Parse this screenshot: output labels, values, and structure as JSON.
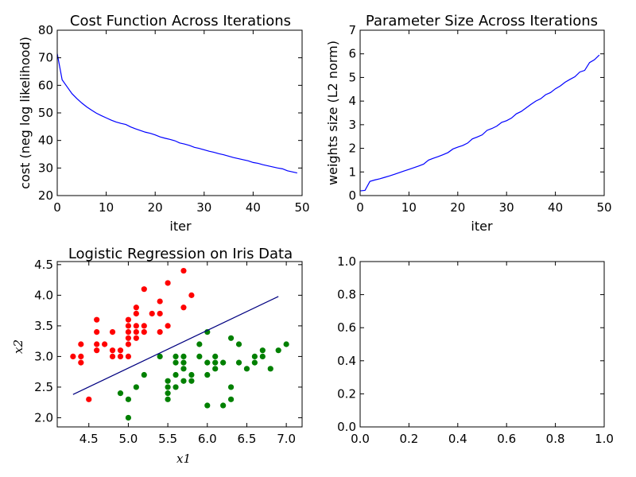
{
  "chart_data": [
    {
      "type": "line",
      "title": "Cost Function Across Iterations",
      "xlabel": "iter",
      "ylabel": "cost (neg log likelihood)",
      "xlim": [
        0,
        50
      ],
      "ylim": [
        20,
        80
      ],
      "xticks": [
        "0",
        "10",
        "20",
        "30",
        "40",
        "50"
      ],
      "yticks": [
        "20",
        "30",
        "40",
        "50",
        "60",
        "70",
        "80"
      ],
      "grid": false,
      "series": [
        {
          "color": "#0000ff",
          "x": [
            0,
            1,
            2,
            3,
            4,
            5,
            6,
            7,
            8,
            9,
            10,
            11,
            12,
            13,
            14,
            15,
            16,
            17,
            18,
            19,
            20,
            21,
            22,
            23,
            24,
            25,
            26,
            27,
            28,
            29,
            30,
            31,
            32,
            33,
            34,
            35,
            36,
            37,
            38,
            39,
            40,
            41,
            42,
            43,
            44,
            45,
            46,
            47,
            48,
            49
          ],
          "y": [
            71.5,
            62.0,
            59.5,
            57.0,
            55.2,
            53.6,
            52.2,
            51.0,
            49.9,
            49.0,
            48.2,
            47.4,
            46.7,
            46.2,
            45.8,
            44.9,
            44.2,
            43.6,
            43.0,
            42.6,
            42.0,
            41.3,
            40.8,
            40.4,
            39.9,
            39.1,
            38.7,
            38.2,
            37.5,
            37.1,
            36.6,
            36.1,
            35.7,
            35.2,
            34.8,
            34.3,
            33.8,
            33.4,
            33.0,
            32.6,
            32.0,
            31.7,
            31.2,
            30.8,
            30.4,
            30.0,
            29.7,
            29.0,
            28.6,
            28.2
          ]
        }
      ]
    },
    {
      "type": "line",
      "title": "Parameter Size Across Iterations",
      "xlabel": "iter",
      "ylabel": "weights size (L2 norm)",
      "xlim": [
        0,
        50
      ],
      "ylim": [
        0,
        7
      ],
      "xticks": [
        "0",
        "10",
        "20",
        "30",
        "40",
        "50"
      ],
      "yticks": [
        "0",
        "1",
        "2",
        "3",
        "4",
        "5",
        "6",
        "7"
      ],
      "grid": false,
      "series": [
        {
          "color": "#0000ff",
          "x": [
            0,
            1,
            2,
            3,
            4,
            5,
            6,
            7,
            8,
            9,
            10,
            11,
            12,
            13,
            14,
            15,
            16,
            17,
            18,
            19,
            20,
            21,
            22,
            23,
            24,
            25,
            26,
            27,
            28,
            29,
            30,
            31,
            32,
            33,
            34,
            35,
            36,
            37,
            38,
            39,
            40,
            41,
            42,
            43,
            44,
            45,
            46,
            47,
            48,
            49
          ],
          "y": [
            0.2,
            0.22,
            0.6,
            0.66,
            0.71,
            0.77,
            0.83,
            0.9,
            0.97,
            1.04,
            1.11,
            1.18,
            1.25,
            1.33,
            1.5,
            1.58,
            1.65,
            1.73,
            1.82,
            1.97,
            2.05,
            2.12,
            2.22,
            2.4,
            2.48,
            2.57,
            2.76,
            2.84,
            2.94,
            3.1,
            3.17,
            3.28,
            3.46,
            3.56,
            3.71,
            3.86,
            4.0,
            4.1,
            4.27,
            4.36,
            4.52,
            4.64,
            4.8,
            4.92,
            5.03,
            5.23,
            5.3,
            5.63,
            5.75,
            5.95
          ]
        }
      ]
    },
    {
      "type": "scatter",
      "title": "Logistic Regression on Iris Data",
      "xlabel": "x1",
      "ylabel": "x2",
      "xlim": [
        4.1,
        7.2
      ],
      "ylim": [
        1.85,
        4.55
      ],
      "xticks": [
        "4.5",
        "5.0",
        "5.5",
        "6.0",
        "6.5",
        "7.0"
      ],
      "yticks": [
        "2.0",
        "2.5",
        "3.0",
        "3.5",
        "4.0",
        "4.5"
      ],
      "grid": false,
      "series": [
        {
          "color": "#ff0000",
          "points": [
            [
              4.3,
              3.0
            ],
            [
              4.4,
              3.2
            ],
            [
              4.4,
              3.0
            ],
            [
              4.4,
              2.9
            ],
            [
              4.5,
              2.3
            ],
            [
              4.6,
              3.6
            ],
            [
              4.6,
              3.4
            ],
            [
              4.6,
              3.2
            ],
            [
              4.6,
              3.1
            ],
            [
              4.7,
              3.2
            ],
            [
              4.8,
              3.4
            ],
            [
              4.8,
              3.1
            ],
            [
              4.8,
              3.0
            ],
            [
              4.9,
              3.1
            ],
            [
              4.9,
              3.0
            ],
            [
              5.0,
              3.6
            ],
            [
              5.0,
              3.5
            ],
            [
              5.0,
              3.4
            ],
            [
              5.0,
              3.3
            ],
            [
              5.0,
              3.2
            ],
            [
              5.0,
              3.0
            ],
            [
              5.1,
              3.8
            ],
            [
              5.1,
              3.7
            ],
            [
              5.1,
              3.5
            ],
            [
              5.1,
              3.4
            ],
            [
              5.1,
              3.3
            ],
            [
              5.2,
              4.1
            ],
            [
              5.2,
              3.5
            ],
            [
              5.2,
              3.4
            ],
            [
              5.3,
              3.7
            ],
            [
              5.4,
              3.9
            ],
            [
              5.4,
              3.7
            ],
            [
              5.4,
              3.4
            ],
            [
              5.5,
              4.2
            ],
            [
              5.5,
              3.5
            ],
            [
              5.7,
              4.4
            ],
            [
              5.7,
              3.8
            ],
            [
              5.8,
              4.0
            ]
          ]
        },
        {
          "color": "#008000",
          "points": [
            [
              4.9,
              2.4
            ],
            [
              5.0,
              2.3
            ],
            [
              5.0,
              2.0
            ],
            [
              5.1,
              2.5
            ],
            [
              5.2,
              2.7
            ],
            [
              5.4,
              3.0
            ],
            [
              5.5,
              2.6
            ],
            [
              5.5,
              2.5
            ],
            [
              5.5,
              2.4
            ],
            [
              5.5,
              2.3
            ],
            [
              5.6,
              3.0
            ],
            [
              5.6,
              2.9
            ],
            [
              5.6,
              2.7
            ],
            [
              5.6,
              2.5
            ],
            [
              5.7,
              3.0
            ],
            [
              5.7,
              2.9
            ],
            [
              5.7,
              2.8
            ],
            [
              5.7,
              2.6
            ],
            [
              5.8,
              2.7
            ],
            [
              5.8,
              2.6
            ],
            [
              5.9,
              3.2
            ],
            [
              5.9,
              3.0
            ],
            [
              6.0,
              3.4
            ],
            [
              6.0,
              2.9
            ],
            [
              6.0,
              2.7
            ],
            [
              6.0,
              2.2
            ],
            [
              6.1,
              3.0
            ],
            [
              6.1,
              2.9
            ],
            [
              6.1,
              2.8
            ],
            [
              6.2,
              2.9
            ],
            [
              6.2,
              2.2
            ],
            [
              6.3,
              3.3
            ],
            [
              6.3,
              2.5
            ],
            [
              6.3,
              2.3
            ],
            [
              6.4,
              3.2
            ],
            [
              6.4,
              2.9
            ],
            [
              6.5,
              2.8
            ],
            [
              6.6,
              3.0
            ],
            [
              6.6,
              2.9
            ],
            [
              6.7,
              3.1
            ],
            [
              6.7,
              3.0
            ],
            [
              6.8,
              2.8
            ],
            [
              6.9,
              3.1
            ],
            [
              7.0,
              3.2
            ]
          ]
        },
        {
          "type": "line",
          "color": "#000080",
          "x": [
            4.3,
            6.9
          ],
          "y": [
            2.38,
            3.98
          ]
        }
      ]
    },
    {
      "type": "line",
      "title": "",
      "xlabel": "",
      "ylabel": "",
      "xlim": [
        0,
        1
      ],
      "ylim": [
        0,
        1
      ],
      "xticks": [
        "0.0",
        "0.2",
        "0.4",
        "0.6",
        "0.8",
        "1.0"
      ],
      "yticks": [
        "0.0",
        "0.2",
        "0.4",
        "0.6",
        "0.8",
        "1.0"
      ],
      "grid": false,
      "series": []
    }
  ]
}
